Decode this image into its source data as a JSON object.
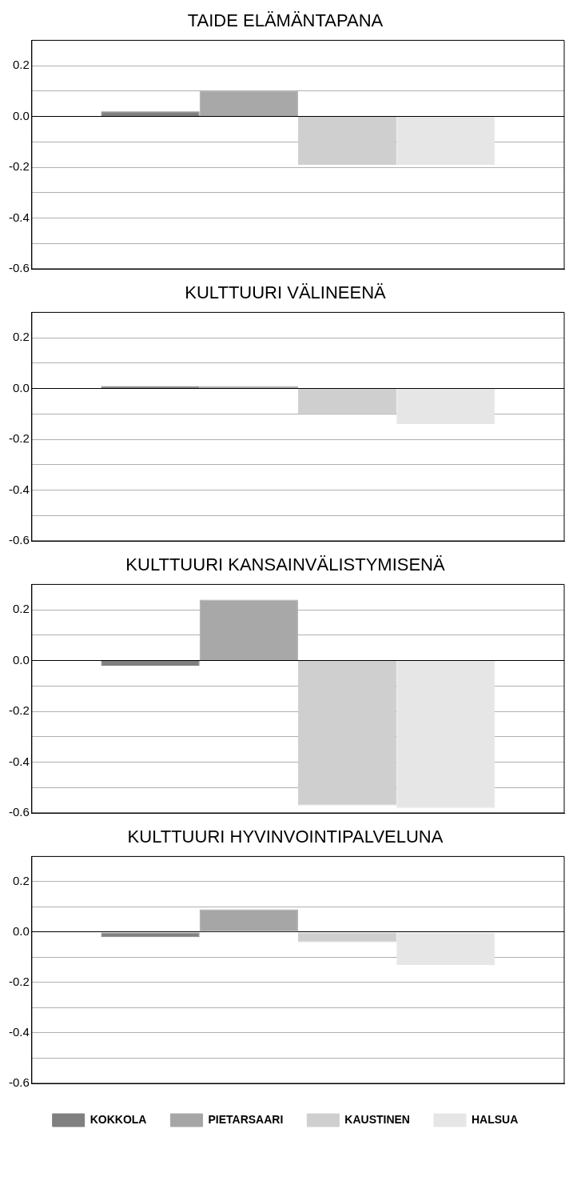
{
  "chart_data": [
    {
      "type": "bar",
      "title": "TAIDE ELÄMÄNTAPANA",
      "categories": [
        null
      ],
      "ylim": [
        -0.6,
        0.3
      ],
      "yticks": [
        {
          "value": 0.3,
          "label": null
        },
        0.2,
        {
          "value": 0.1,
          "label": null
        },
        "0.0",
        {
          "value": -0.1,
          "label": null
        },
        -0.2,
        {
          "value": -0.3,
          "label": null
        },
        -0.4,
        {
          "value": -0.5,
          "label": null
        },
        -0.6
      ],
      "grid": "y",
      "legend": false,
      "tick_labels": "y",
      "series": [
        {
          "color": "#808080",
          "values": [
            0.02
          ]
        },
        {
          "color": "#a8a8a8",
          "values": [
            0.1
          ]
        },
        {
          "color": "#cfcfcf",
          "values": [
            -0.19
          ]
        },
        {
          "color": "#e6e6e6",
          "values": [
            -0.19
          ]
        }
      ]
    },
    {
      "type": "bar",
      "title": "KULTTUURI VÄLINEENÄ",
      "categories": [
        null
      ],
      "ylim": [
        -0.6,
        0.3
      ],
      "yticks": [
        {
          "value": 0.3,
          "label": null
        },
        0.2,
        {
          "value": 0.1,
          "label": null
        },
        "0.0",
        {
          "value": -0.1,
          "label": null
        },
        -0.2,
        {
          "value": -0.3,
          "label": null
        },
        -0.4,
        {
          "value": -0.5,
          "label": null
        },
        -0.6
      ],
      "grid": "y",
      "legend": false,
      "tick_labels": "y",
      "series": [
        {
          "color": "#808080",
          "values": [
            0.01
          ]
        },
        {
          "color": "#a8a8a8",
          "values": [
            0.01
          ]
        },
        {
          "color": "#cfcfcf",
          "values": [
            -0.1
          ]
        },
        {
          "color": "#e6e6e6",
          "values": [
            -0.14
          ]
        }
      ]
    },
    {
      "type": "bar",
      "title": "KULTTUURI KANSAINVÄLISTYMISENÄ",
      "categories": [
        null
      ],
      "ylim": [
        -0.6,
        0.3
      ],
      "yticks": [
        {
          "value": 0.3,
          "label": null
        },
        0.2,
        {
          "value": 0.1,
          "label": null
        },
        "0.0",
        {
          "value": -0.1,
          "label": null
        },
        -0.2,
        {
          "value": -0.3,
          "label": null
        },
        -0.4,
        {
          "value": -0.5,
          "label": null
        },
        -0.6
      ],
      "grid": "y",
      "legend": false,
      "tick_labels": "y",
      "series": [
        {
          "color": "#808080",
          "values": [
            -0.02
          ]
        },
        {
          "color": "#a8a8a8",
          "values": [
            0.24
          ]
        },
        {
          "color": "#cfcfcf",
          "values": [
            -0.57
          ]
        },
        {
          "color": "#e6e6e6",
          "values": [
            -0.58
          ]
        }
      ]
    },
    {
      "type": "bar",
      "title": "KULTTUURI HYVINVOINTIPALVELUNA",
      "categories": [
        null
      ],
      "ylim": [
        -0.6,
        0.3
      ],
      "yticks": [
        {
          "value": 0.3,
          "label": null
        },
        0.2,
        {
          "value": 0.1,
          "label": null
        },
        "0.0",
        {
          "value": -0.1,
          "label": null
        },
        -0.2,
        {
          "value": -0.3,
          "label": null
        },
        -0.4,
        {
          "value": -0.5,
          "label": null
        },
        -0.6
      ],
      "grid": "y",
      "legend": "bottom",
      "tick_labels": "y",
      "series": [
        {
          "name": "KOKKOLA",
          "color": "#808080",
          "values": [
            -0.02
          ]
        },
        {
          "name": "PIETARSAARI",
          "color": "#a6a6a6",
          "values": [
            0.09
          ]
        },
        {
          "name": "KAUSTINEN",
          "color": "#cfcfcf",
          "values": [
            -0.04
          ]
        },
        {
          "name": "HALSUA",
          "color": "#e6e6e6",
          "values": [
            -0.13
          ]
        }
      ]
    }
  ]
}
